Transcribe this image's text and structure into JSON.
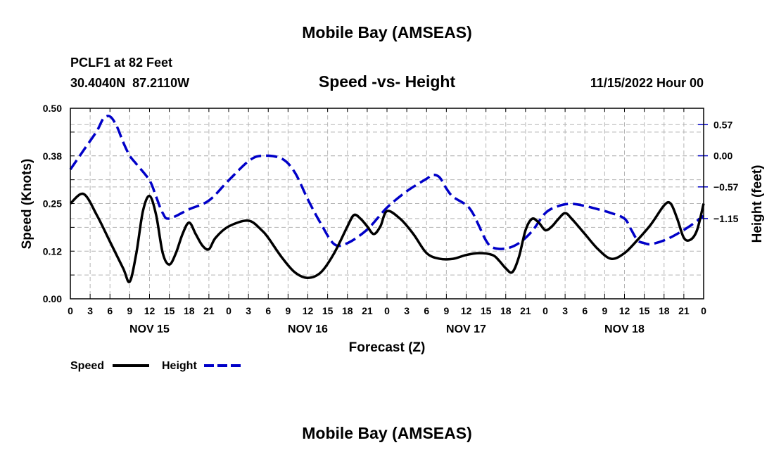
{
  "page": {
    "title": "Mobile Bay (AMSEAS)",
    "footer_title": "Mobile Bay (AMSEAS)"
  },
  "station": {
    "name": "PCLF1 at 82 Feet",
    "coords": "30.4040N  87.2110W",
    "datetime": "11/15/2022 Hour 00"
  },
  "chart_data": {
    "type": "line",
    "title": "Speed -vs- Height",
    "xlabel": "Forecast (Z)",
    "ylabel": "Speed (Knots)",
    "y2label": "Height (feet)",
    "x_range_hours": [
      0,
      96
    ],
    "ylim": [
      0,
      0.5
    ],
    "y_ticks": [
      "0.00",
      "0.12",
      "0.25",
      "0.38",
      "0.50"
    ],
    "y_tick_values": [
      0,
      0.125,
      0.25,
      0.375,
      0.5
    ],
    "y2lim": [
      -2.62,
      0.87
    ],
    "y2_ticks": [
      "0.57",
      "0.00",
      "−0.57",
      "−1.15"
    ],
    "y2_tick_values": [
      0.57,
      0.0,
      -0.57,
      -1.15
    ],
    "x_tick_labels": [
      "0",
      "3",
      "6",
      "9",
      "12",
      "15",
      "18",
      "21",
      "0",
      "3",
      "6",
      "9",
      "12",
      "15",
      "18",
      "21",
      "0",
      "3",
      "6",
      "9",
      "12",
      "15",
      "18",
      "21",
      "0",
      "3",
      "6",
      "9",
      "12",
      "15",
      "18",
      "21",
      "0"
    ],
    "day_labels": [
      {
        "label": "NOV 15",
        "hour": 12
      },
      {
        "label": "NOV 16",
        "hour": 36
      },
      {
        "label": "NOV 17",
        "hour": 60
      },
      {
        "label": "NOV 18",
        "hour": 84
      }
    ],
    "grid": true,
    "series": [
      {
        "name": "Speed",
        "axis": "left",
        "color": "#000000",
        "dash": "solid",
        "points": [
          [
            0,
            0.25
          ],
          [
            2,
            0.275
          ],
          [
            4,
            0.22
          ],
          [
            6,
            0.15
          ],
          [
            8,
            0.08
          ],
          [
            9,
            0.045
          ],
          [
            10,
            0.12
          ],
          [
            11,
            0.23
          ],
          [
            12,
            0.27
          ],
          [
            13,
            0.22
          ],
          [
            14,
            0.12
          ],
          [
            15,
            0.09
          ],
          [
            16,
            0.12
          ],
          [
            17,
            0.17
          ],
          [
            18,
            0.2
          ],
          [
            19,
            0.17
          ],
          [
            20,
            0.14
          ],
          [
            21,
            0.13
          ],
          [
            22,
            0.16
          ],
          [
            24,
            0.19
          ],
          [
            27,
            0.205
          ],
          [
            29,
            0.18
          ],
          [
            30,
            0.16
          ],
          [
            32,
            0.11
          ],
          [
            34,
            0.07
          ],
          [
            36,
            0.055
          ],
          [
            38,
            0.07
          ],
          [
            40,
            0.12
          ],
          [
            42,
            0.19
          ],
          [
            43,
            0.22
          ],
          [
            44,
            0.21
          ],
          [
            45,
            0.19
          ],
          [
            46,
            0.17
          ],
          [
            47,
            0.19
          ],
          [
            48,
            0.23
          ],
          [
            50,
            0.21
          ],
          [
            52,
            0.17
          ],
          [
            54,
            0.12
          ],
          [
            56,
            0.105
          ],
          [
            58,
            0.105
          ],
          [
            60,
            0.115
          ],
          [
            62,
            0.12
          ],
          [
            64,
            0.115
          ],
          [
            65,
            0.1
          ],
          [
            66,
            0.08
          ],
          [
            67,
            0.07
          ],
          [
            68,
            0.11
          ],
          [
            69,
            0.18
          ],
          [
            70,
            0.21
          ],
          [
            71,
            0.2
          ],
          [
            72,
            0.18
          ],
          [
            73,
            0.19
          ],
          [
            74,
            0.21
          ],
          [
            75,
            0.225
          ],
          [
            76,
            0.21
          ],
          [
            78,
            0.17
          ],
          [
            80,
            0.13
          ],
          [
            82,
            0.105
          ],
          [
            84,
            0.12
          ],
          [
            86,
            0.155
          ],
          [
            88,
            0.195
          ],
          [
            90,
            0.245
          ],
          [
            91,
            0.25
          ],
          [
            92,
            0.21
          ],
          [
            93,
            0.16
          ],
          [
            94,
            0.155
          ],
          [
            95,
            0.18
          ],
          [
            96,
            0.25
          ]
        ]
      },
      {
        "name": "Height",
        "axis": "right",
        "color": "#0000c8",
        "dash": "dashed",
        "points": [
          [
            0,
            -0.25
          ],
          [
            2,
            0.1
          ],
          [
            4,
            0.45
          ],
          [
            5,
            0.68
          ],
          [
            6,
            0.72
          ],
          [
            7,
            0.55
          ],
          [
            8,
            0.25
          ],
          [
            9,
            0.0
          ],
          [
            10,
            -0.15
          ],
          [
            12,
            -0.45
          ],
          [
            13,
            -0.75
          ],
          [
            14,
            -1.05
          ],
          [
            15,
            -1.15
          ],
          [
            18,
            -0.98
          ],
          [
            21,
            -0.82
          ],
          [
            24,
            -0.45
          ],
          [
            27,
            -0.1
          ],
          [
            29,
            0.0
          ],
          [
            32,
            -0.05
          ],
          [
            34,
            -0.3
          ],
          [
            36,
            -0.8
          ],
          [
            38,
            -1.25
          ],
          [
            40,
            -1.62
          ],
          [
            42,
            -1.6
          ],
          [
            45,
            -1.35
          ],
          [
            48,
            -0.95
          ],
          [
            51,
            -0.65
          ],
          [
            54,
            -0.42
          ],
          [
            55,
            -0.35
          ],
          [
            56,
            -0.4
          ],
          [
            57,
            -0.6
          ],
          [
            58,
            -0.75
          ],
          [
            60,
            -0.9
          ],
          [
            61,
            -1.05
          ],
          [
            62,
            -1.3
          ],
          [
            63,
            -1.55
          ],
          [
            64,
            -1.68
          ],
          [
            66,
            -1.7
          ],
          [
            68,
            -1.6
          ],
          [
            70,
            -1.38
          ],
          [
            72,
            -1.05
          ],
          [
            74,
            -0.92
          ],
          [
            76,
            -0.88
          ],
          [
            78,
            -0.92
          ],
          [
            80,
            -0.98
          ],
          [
            82,
            -1.05
          ],
          [
            84,
            -1.15
          ],
          [
            85,
            -1.35
          ],
          [
            86,
            -1.55
          ],
          [
            87,
            -1.6
          ],
          [
            88,
            -1.62
          ],
          [
            90,
            -1.55
          ],
          [
            92,
            -1.43
          ],
          [
            94,
            -1.28
          ],
          [
            96,
            -1.1
          ]
        ]
      }
    ]
  },
  "legend": {
    "speed_label": "Speed",
    "height_label": "Height"
  }
}
